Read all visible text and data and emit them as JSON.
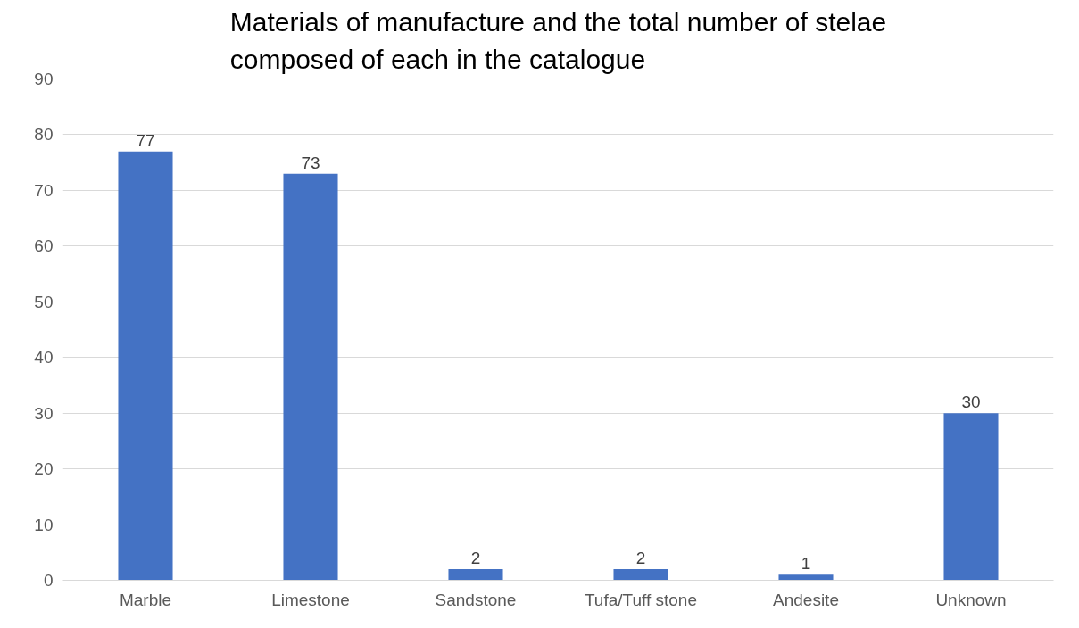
{
  "chart_data": {
    "type": "bar",
    "title": "Materials of manufacture and the total number of stelae\ncomposed of each in the catalogue",
    "categories": [
      "Marble",
      "Limestone",
      "Sandstone",
      "Tufa/Tuff stone",
      "Andesite",
      "Unknown"
    ],
    "values": [
      77,
      73,
      2,
      2,
      1,
      30
    ],
    "color": "#4472c4",
    "ylim": [
      0,
      90
    ],
    "yticks": [
      0,
      10,
      20,
      30,
      40,
      50,
      60,
      70,
      80,
      90
    ],
    "grid": "y",
    "data_labels": true
  }
}
